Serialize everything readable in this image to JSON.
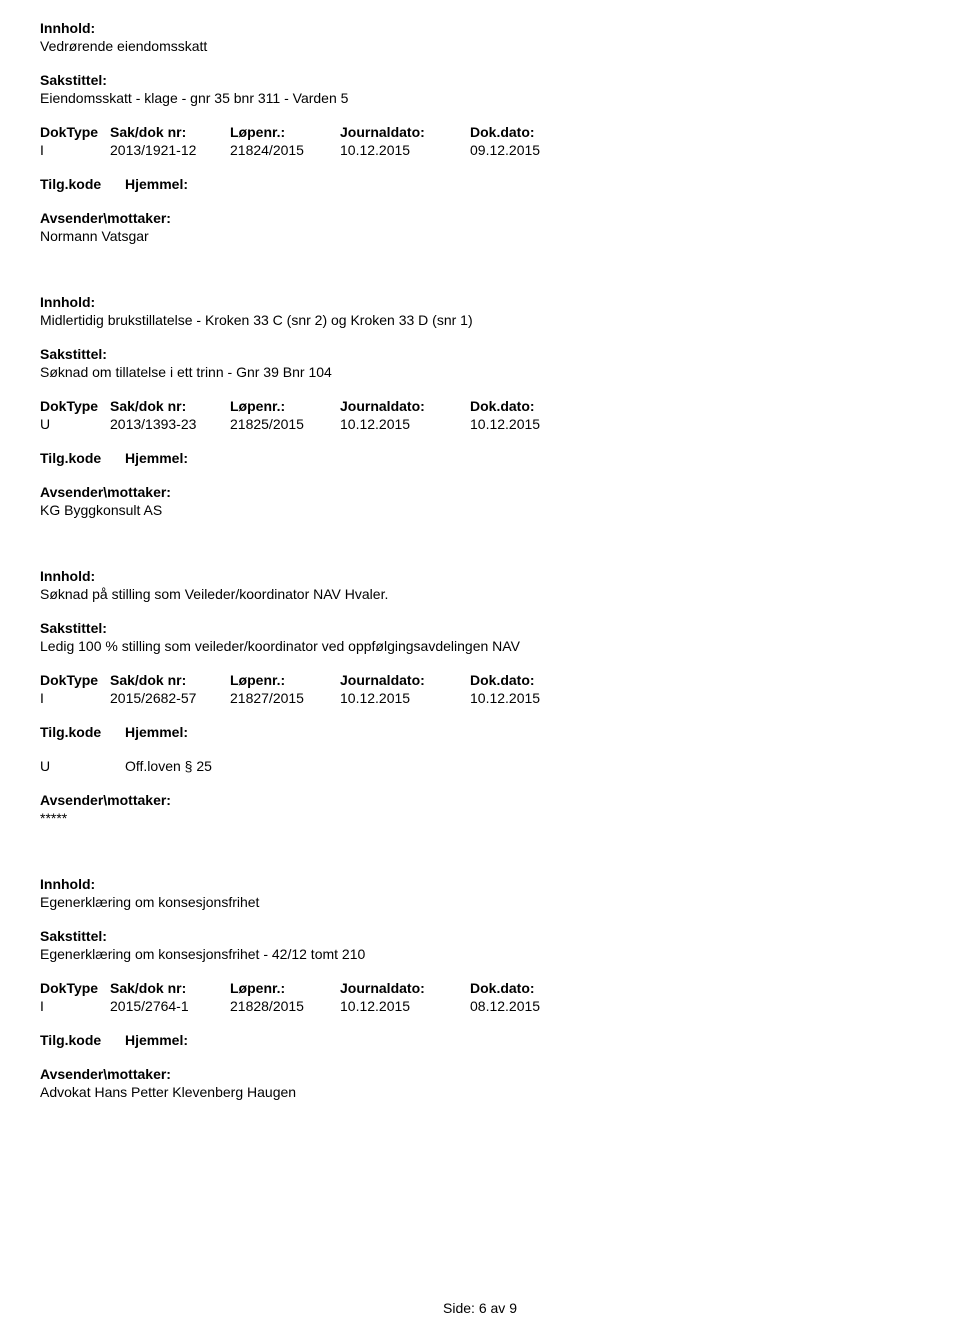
{
  "labels": {
    "innhold": "Innhold:",
    "sakstittel": "Sakstittel:",
    "doktype": "DokType",
    "sakdok": "Sak/dok nr:",
    "lopenr": "Løpenr.:",
    "journaldato": "Journaldato:",
    "dokdato": "Dok.dato:",
    "tilgkode": "Tilg.kode",
    "hjemmel": "Hjemmel:",
    "avsender": "Avsender\\mottaker:"
  },
  "entries": [
    {
      "innhold": "Vedrørende eiendomsskatt",
      "sakstittel": "Eiendomsskatt - klage - gnr 35 bnr 311 - Varden 5",
      "doktype": "I",
      "sakdok": "2013/1921-12",
      "lopenr": "21824/2015",
      "journaldato": "10.12.2015",
      "dokdato": "09.12.2015",
      "tilgkode": "",
      "hjemmel": "",
      "avsender": "Normann Vatsgar"
    },
    {
      "innhold": "Midlertidig brukstillatelse - Kroken 33 C (snr 2) og Kroken 33 D (snr 1)",
      "sakstittel": "Søknad om tillatelse i ett trinn - Gnr 39 Bnr 104",
      "doktype": "U",
      "sakdok": "2013/1393-23",
      "lopenr": "21825/2015",
      "journaldato": "10.12.2015",
      "dokdato": "10.12.2015",
      "tilgkode": "",
      "hjemmel": "",
      "avsender": "KG Byggkonsult AS"
    },
    {
      "innhold": "Søknad på stilling som Veileder/koordinator NAV Hvaler.",
      "sakstittel": "Ledig 100 % stilling som veileder/koordinator ved oppfølgingsavdelingen NAV",
      "doktype": "I",
      "sakdok": "2015/2682-57",
      "lopenr": "21827/2015",
      "journaldato": "10.12.2015",
      "dokdato": "10.12.2015",
      "tilgkode": "U",
      "hjemmel": "Off.loven § 25",
      "avsender": "*****"
    },
    {
      "innhold": "Egenerklæring om konsesjonsfrihet",
      "sakstittel": "Egenerklæring om konsesjonsfrihet - 42/12 tomt 210",
      "doktype": "I",
      "sakdok": "2015/2764-1",
      "lopenr": "21828/2015",
      "journaldato": "10.12.2015",
      "dokdato": "08.12.2015",
      "tilgkode": "",
      "hjemmel": "",
      "avsender": "Advokat Hans Petter Klevenberg Haugen"
    }
  ],
  "footer": {
    "side_label": "Side:",
    "page_current": "6",
    "page_sep": "av",
    "page_total": "9"
  }
}
